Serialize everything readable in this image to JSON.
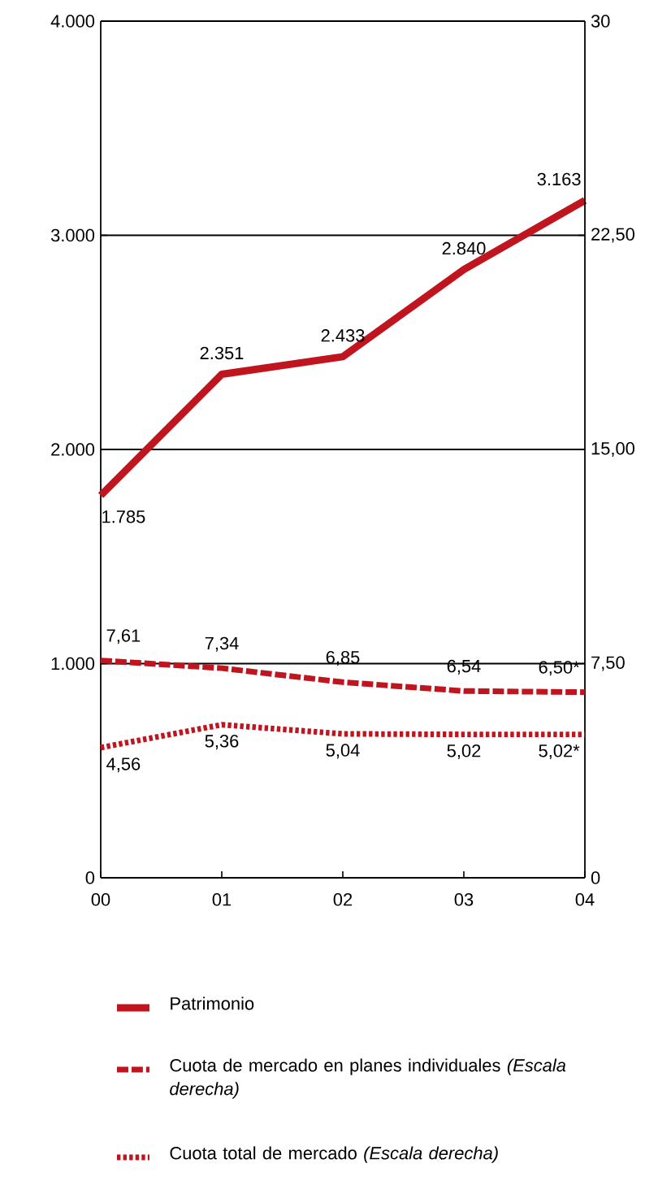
{
  "chart_data": {
    "type": "line",
    "categories": [
      "00",
      "01",
      "02",
      "03",
      "04"
    ],
    "ylim": [
      0,
      4000
    ],
    "yticks": [
      {
        "value": 0,
        "label": "0"
      },
      {
        "value": 1000,
        "label": "1.000"
      },
      {
        "value": 2000,
        "label": "2.000"
      },
      {
        "value": 3000,
        "label": "3.000"
      },
      {
        "value": 4000,
        "label": "4.000"
      }
    ],
    "y2lim": [
      0,
      30
    ],
    "y2ticks": [
      {
        "value": 0,
        "label": "0"
      },
      {
        "value": 7.5,
        "label": "7,50"
      },
      {
        "value": 15,
        "label": "15,00"
      },
      {
        "value": 22.5,
        "label": "22,50"
      },
      {
        "value": 30,
        "label": "30"
      }
    ],
    "grid": "y",
    "legend": "bottom",
    "marker": "none",
    "series": [
      {
        "name": "Patrimonio",
        "color": "#c0141e",
        "line_style": "solid",
        "values": [
          1785,
          2351,
          2433,
          2840,
          3163
        ],
        "value_labels": [
          "1.785",
          "2.351",
          "2.433",
          "2.840",
          "3.163"
        ]
      },
      {
        "name": "Cuota de mercado en planes individuales *(Escala derecha)*",
        "color": "#c0141e",
        "line_style": "dashed",
        "axis": "y2",
        "values": [
          7.61,
          7.34,
          6.85,
          6.54,
          6.5
        ],
        "value_labels": [
          "7,61",
          "7,34",
          "6,85",
          "6,54",
          "6,50*"
        ]
      },
      {
        "name": "Cuota total de mercado *(Escala derecha)*",
        "color": "#c0141e",
        "line_style": "dotted",
        "axis": "y2",
        "values": [
          4.56,
          5.36,
          5.04,
          5.02,
          5.02
        ],
        "value_labels": [
          "4,56",
          "5,36",
          "5,04",
          "5,02",
          "5,02*"
        ]
      }
    ]
  }
}
